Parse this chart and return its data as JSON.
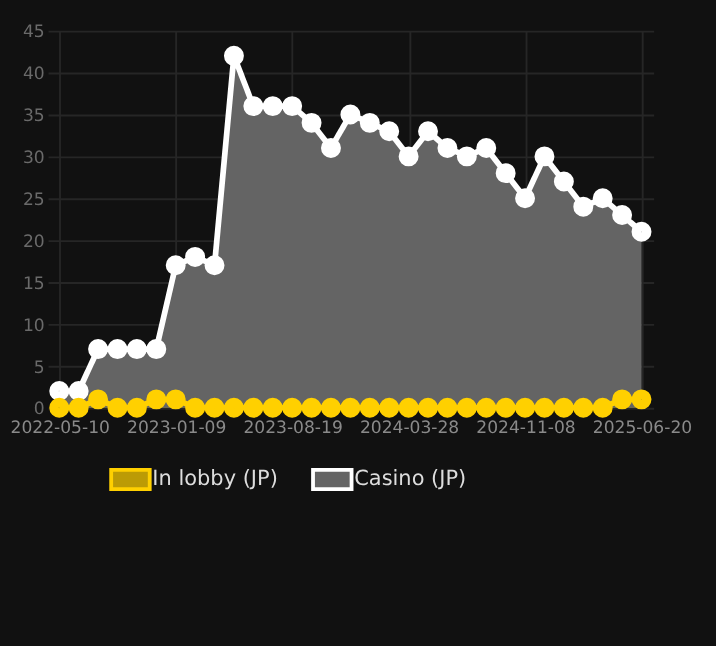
{
  "chart_data": {
    "type": "area",
    "categories": [
      "2022-05-10",
      null,
      null,
      null,
      null,
      null,
      "2023-01-09",
      null,
      null,
      null,
      null,
      null,
      "2023-08-19",
      null,
      null,
      null,
      null,
      null,
      "2024-03-28",
      null,
      null,
      null,
      null,
      null,
      "2024-11-08",
      null,
      null,
      null,
      null,
      null,
      "2025-06-20"
    ],
    "series": [
      {
        "name": "In lobby (JP)",
        "color": "#ffd000",
        "values": [
          0,
          0,
          1,
          0,
          0,
          1,
          1,
          0,
          0,
          0,
          0,
          0,
          0,
          0,
          0,
          0,
          0,
          0,
          0,
          0,
          0,
          0,
          0,
          0,
          0,
          0,
          0,
          0,
          0,
          1,
          1
        ]
      },
      {
        "name": "Casino (JP)",
        "color": "#ffffff",
        "values": [
          2,
          2,
          7,
          7,
          7,
          7,
          17,
          18,
          17,
          42,
          36,
          36,
          36,
          34,
          31,
          35,
          34,
          33,
          30,
          33,
          31,
          30,
          31,
          28,
          25,
          30,
          27,
          24,
          25,
          23,
          21
        ]
      }
    ],
    "ylim": [
      0,
      45
    ],
    "yticks": [
      0,
      5,
      10,
      15,
      20,
      25,
      30,
      35,
      40,
      45
    ],
    "grid": true,
    "legend": "bottom",
    "marker": "circle",
    "line_style": "solid"
  }
}
